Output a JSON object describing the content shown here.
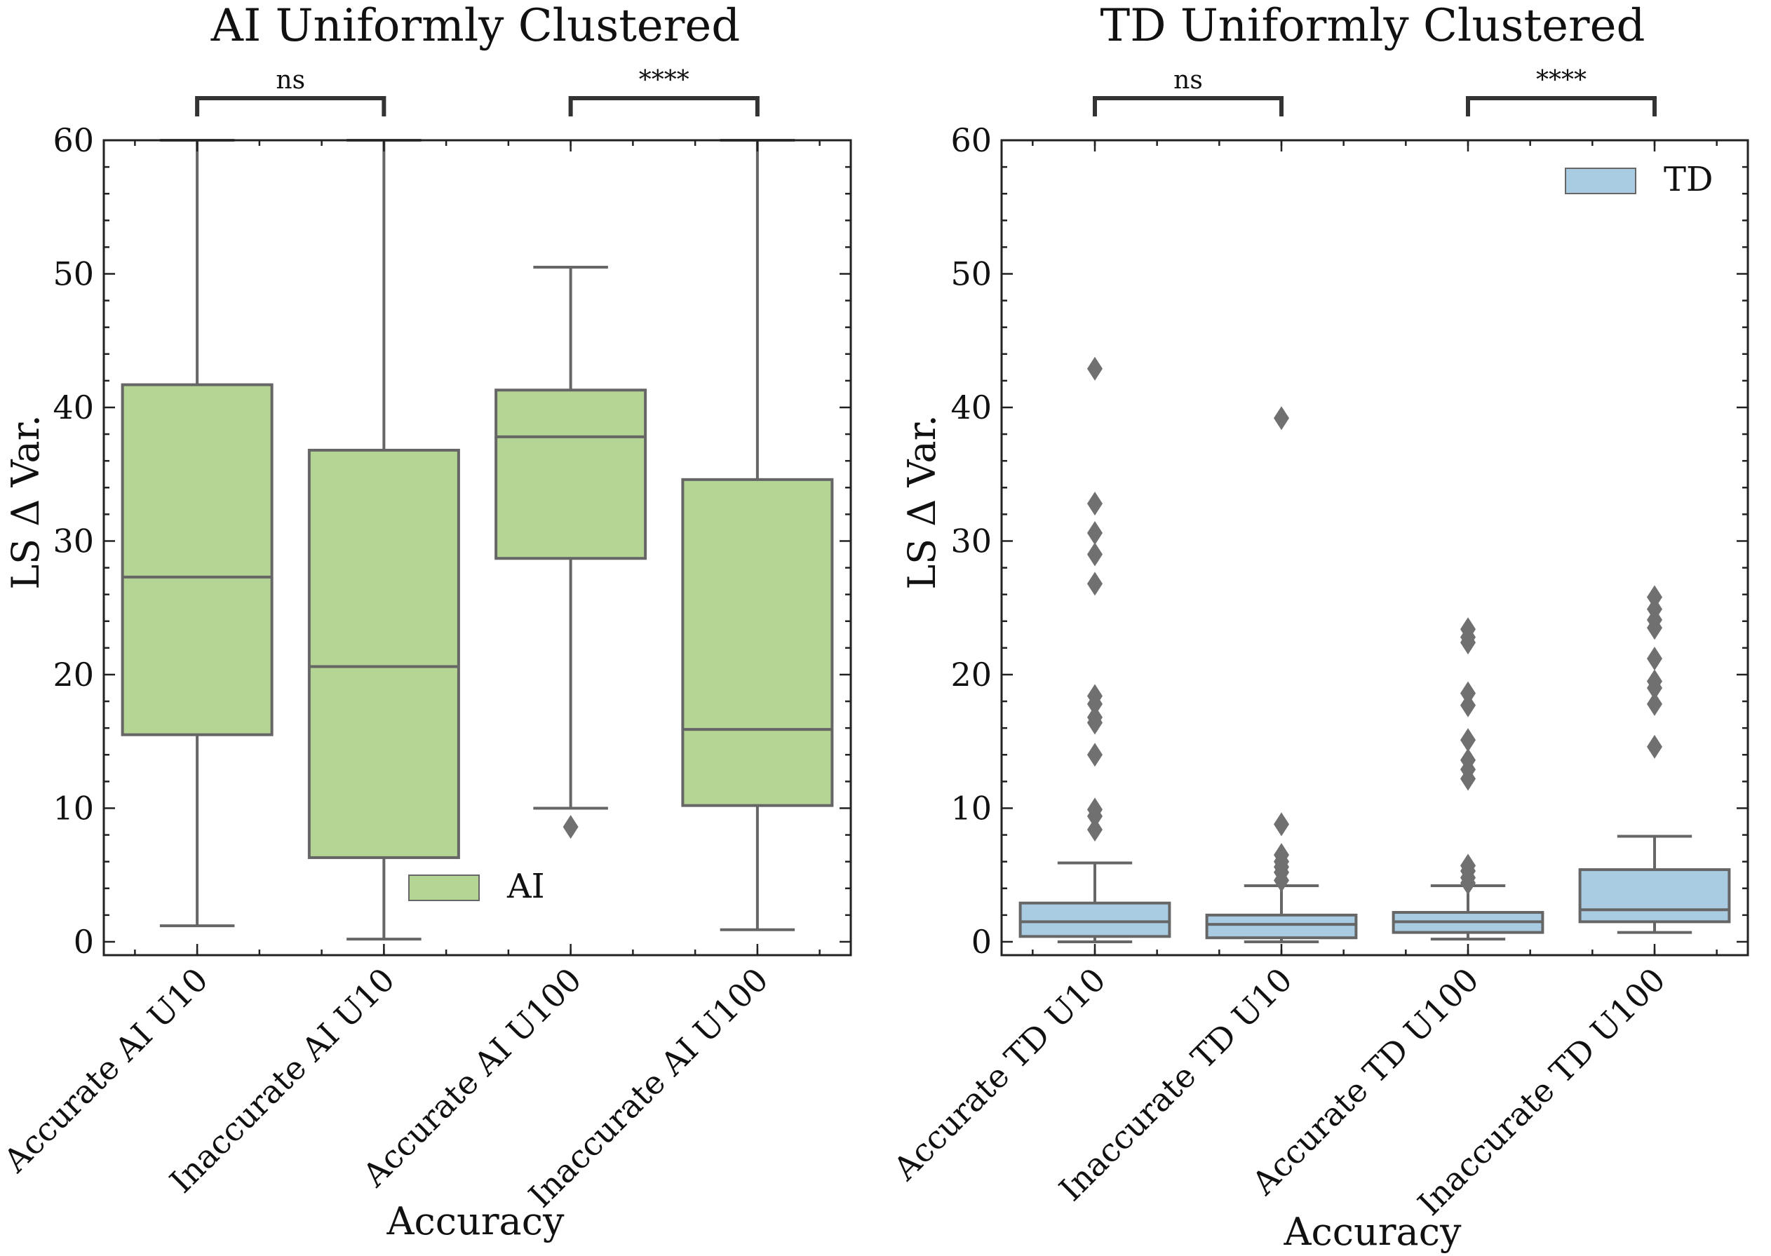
{
  "chart_data": [
    {
      "type": "box",
      "title": "AI Uniformly Clustered",
      "xlabel": "Accuracy",
      "ylabel": "LS Δ Var.",
      "ylim": [
        -1,
        60
      ],
      "yticks": [
        0,
        10,
        20,
        30,
        40,
        50,
        60
      ],
      "categories": [
        "Accurate AI U10",
        "Inaccurate AI U10",
        "Accurate AI U100",
        "Inaccurate AI U100"
      ],
      "series": [
        {
          "name": "AI",
          "color": "#b5d594",
          "edge_color": "#666666",
          "boxes": [
            {
              "whisker_low": 1.2,
              "q1": 15.5,
              "median": 27.3,
              "q3": 41.7,
              "whisker_high": 60,
              "outliers": []
            },
            {
              "whisker_low": 0.2,
              "q1": 6.3,
              "median": 20.6,
              "q3": 36.8,
              "whisker_high": 60,
              "outliers": []
            },
            {
              "whisker_low": 10.0,
              "q1": 28.7,
              "median": 37.8,
              "q3": 41.3,
              "whisker_high": 50.5,
              "outliers": [
                8.6
              ]
            },
            {
              "whisker_low": 0.9,
              "q1": 10.2,
              "median": 15.9,
              "q3": 34.6,
              "whisker_high": 60,
              "outliers": []
            }
          ]
        }
      ],
      "legend": {
        "label": "AI",
        "position": "lower-center"
      },
      "annotations": [
        {
          "pair": [
            0,
            1
          ],
          "text": "ns"
        },
        {
          "pair": [
            2,
            3
          ],
          "text": "****"
        }
      ]
    },
    {
      "type": "box",
      "title": "TD Uniformly Clustered",
      "xlabel": "Accuracy",
      "ylabel": "LS Δ Var.",
      "ylim": [
        -1,
        60
      ],
      "yticks": [
        0,
        10,
        20,
        30,
        40,
        50,
        60
      ],
      "categories": [
        "Accurate TD U10",
        "Inaccurate TD U10",
        "Accurate TD U100",
        "Inaccurate TD U100"
      ],
      "series": [
        {
          "name": "TD",
          "color": "#a9cce3",
          "edge_color": "#666666",
          "boxes": [
            {
              "whisker_low": 0.0,
              "q1": 0.4,
              "median": 1.5,
              "q3": 2.9,
              "whisker_high": 5.9,
              "outliers": [
                8.4,
                9.4,
                9.9,
                14.0,
                16.4,
                16.8,
                17.8,
                18.4,
                26.8,
                29.0,
                30.6,
                32.8,
                42.9
              ]
            },
            {
              "whisker_low": 0.0,
              "q1": 0.3,
              "median": 1.3,
              "q3": 2.0,
              "whisker_high": 4.2,
              "outliers": [
                4.6,
                5.2,
                5.6,
                6.0,
                6.5,
                8.8,
                39.2
              ]
            },
            {
              "whisker_low": 0.2,
              "q1": 0.7,
              "median": 1.5,
              "q3": 2.2,
              "whisker_high": 4.2,
              "outliers": [
                4.4,
                4.8,
                5.3,
                5.7,
                12.2,
                12.9,
                13.6,
                15.1,
                17.7,
                18.6,
                22.4,
                22.8,
                23.4
              ]
            },
            {
              "whisker_low": 0.7,
              "q1": 1.5,
              "median": 2.4,
              "q3": 5.4,
              "whisker_high": 7.9,
              "outliers": [
                14.6,
                17.8,
                19.0,
                19.5,
                21.2,
                23.5,
                24.1,
                24.9,
                25.8
              ]
            }
          ]
        }
      ],
      "legend": {
        "label": "TD",
        "position": "upper-right"
      },
      "annotations": [
        {
          "pair": [
            0,
            1
          ],
          "text": "ns"
        },
        {
          "pair": [
            2,
            3
          ],
          "text": "****"
        }
      ]
    }
  ]
}
